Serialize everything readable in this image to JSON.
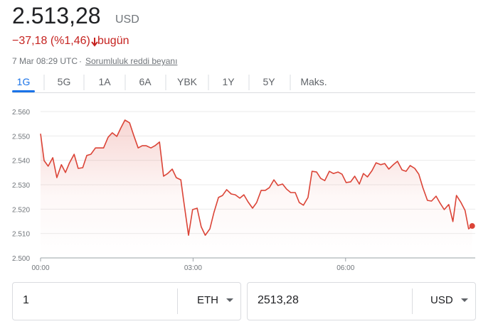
{
  "header": {
    "price": "2.513,28",
    "currency": "USD",
    "change": "−37,18 (%1,46)",
    "period": "bugün",
    "timestamp": "7 Mar 08:29 UTC",
    "disclaimer": "Sorumluluk reddi beyanı"
  },
  "tabs": [
    "1G",
    "5G",
    "1A",
    "6A",
    "YBK",
    "1Y",
    "5Y",
    "Maks."
  ],
  "converter": {
    "from_amount": "1",
    "from_currency": "ETH",
    "to_amount": "2513,28",
    "to_currency": "USD"
  },
  "chart_data": {
    "type": "line",
    "color": "#db4437",
    "grid": true,
    "xlim": [
      0,
      8.55
    ],
    "ylim": [
      2500,
      2560
    ],
    "xticks": [
      {
        "value": 0,
        "label": "00:00"
      },
      {
        "value": 3,
        "label": "03:00"
      },
      {
        "value": 6,
        "label": "06:00"
      }
    ],
    "yticks": [
      {
        "value": 2500,
        "label": "2.500"
      },
      {
        "value": 2510,
        "label": "2.510"
      },
      {
        "value": 2520,
        "label": "2.520"
      },
      {
        "value": 2530,
        "label": "2.530"
      },
      {
        "value": 2540,
        "label": "2.540"
      },
      {
        "value": 2550,
        "label": "2.550"
      },
      {
        "value": 2560,
        "label": "2.560"
      }
    ],
    "x": [
      0,
      0.07,
      0.15,
      0.24,
      0.32,
      0.41,
      0.49,
      0.57,
      0.66,
      0.74,
      0.83,
      0.91,
      0.99,
      1.08,
      1.24,
      1.33,
      1.41,
      1.5,
      1.58,
      1.66,
      1.75,
      1.83,
      1.92,
      2,
      2.08,
      2.17,
      2.25,
      2.34,
      2.42,
      2.5,
      2.59,
      2.67,
      2.76,
      2.81,
      2.91,
      2.99,
      3.08,
      3.16,
      3.24,
      3.33,
      3.41,
      3.5,
      3.58,
      3.66,
      3.75,
      3.83,
      3.92,
      4,
      4.08,
      4.17,
      4.25,
      4.34,
      4.42,
      4.5,
      4.59,
      4.67,
      4.76,
      4.84,
      4.92,
      5.01,
      5.09,
      5.17,
      5.26,
      5.34,
      5.43,
      5.51,
      5.59,
      5.68,
      5.76,
      5.85,
      5.93,
      6.01,
      6.1,
      6.18,
      6.27,
      6.35,
      6.43,
      6.52,
      6.6,
      6.69,
      6.77,
      6.85,
      6.94,
      7.02,
      7.11,
      7.19,
      7.27,
      7.36,
      7.44,
      7.52,
      7.61,
      7.69,
      7.78,
      7.86,
      7.94,
      8.03,
      8.11,
      8.18,
      8.27,
      8.35,
      8.42,
      8.49
    ],
    "values": [
      2550.9,
      2539.9,
      2537.6,
      2541.1,
      2532.9,
      2538.2,
      2535,
      2539,
      2542.5,
      2536.7,
      2537,
      2542,
      2542.5,
      2545.1,
      2545.1,
      2549.5,
      2551.3,
      2549.8,
      2553.3,
      2556.5,
      2555.4,
      2550.4,
      2545.1,
      2546,
      2546,
      2545.1,
      2546,
      2547.5,
      2533.5,
      2534.6,
      2536.4,
      2532.9,
      2532,
      2524.2,
      2509.3,
      2519.8,
      2520.4,
      2512.8,
      2509.3,
      2511.9,
      2518.6,
      2524.8,
      2525.6,
      2528,
      2526.2,
      2525.9,
      2524.5,
      2525.9,
      2523,
      2520.4,
      2522.7,
      2527.7,
      2527.7,
      2528.8,
      2532,
      2529.7,
      2530.3,
      2528.2,
      2526.8,
      2526.8,
      2522.7,
      2521.6,
      2524.8,
      2535.5,
      2535.2,
      2532.6,
      2531.7,
      2535.5,
      2534.6,
      2535.2,
      2534.3,
      2530.9,
      2531.2,
      2533.5,
      2530.3,
      2534.6,
      2533.2,
      2535.8,
      2539,
      2538.2,
      2538.7,
      2536.4,
      2538.2,
      2539.6,
      2536.1,
      2535.5,
      2537.9,
      2536.7,
      2534.3,
      2528.8,
      2523.6,
      2523.3,
      2525.3,
      2522.4,
      2519.8,
      2521.9,
      2514.9,
      2525.6,
      2522.7,
      2519.5,
      2511.9,
      2513.1
    ]
  }
}
